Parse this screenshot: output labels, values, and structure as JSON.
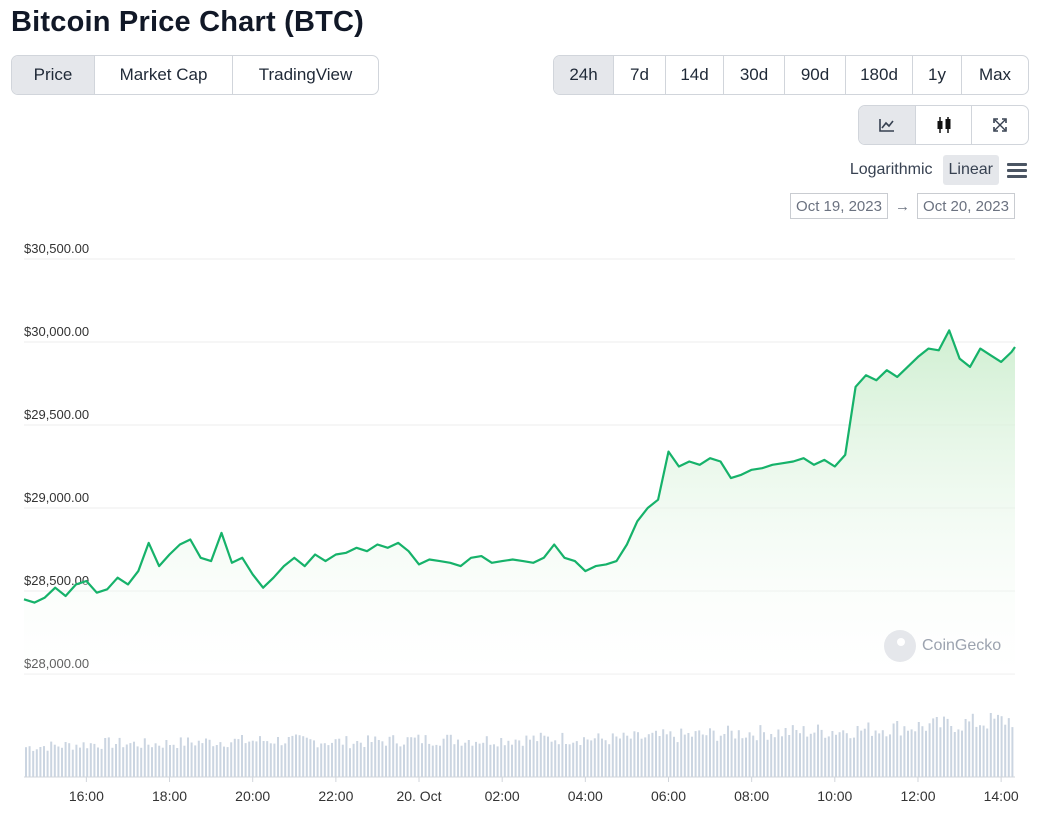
{
  "title": "Bitcoin Price Chart (BTC)",
  "view_tabs": [
    {
      "label": "Price",
      "active": true
    },
    {
      "label": "Market Cap",
      "active": false
    },
    {
      "label": "TradingView",
      "active": false
    }
  ],
  "range_tabs": [
    {
      "label": "24h",
      "active": true
    },
    {
      "label": "7d",
      "active": false
    },
    {
      "label": "14d",
      "active": false
    },
    {
      "label": "30d",
      "active": false
    },
    {
      "label": "90d",
      "active": false
    },
    {
      "label": "180d",
      "active": false
    },
    {
      "label": "1y",
      "active": false
    },
    {
      "label": "Max",
      "active": false
    }
  ],
  "tools": [
    {
      "icon": "line-chart-icon",
      "active": true
    },
    {
      "icon": "candlestick-icon",
      "active": false
    },
    {
      "icon": "fullscreen-icon",
      "active": false
    }
  ],
  "scale": {
    "log_label": "Logarithmic",
    "linear_label": "Linear",
    "selected": "Linear"
  },
  "date_range": {
    "from": "Oct 19, 2023",
    "arrow": "→",
    "to": "Oct 20, 2023"
  },
  "watermark": "CoinGecko",
  "colors": {
    "line": "#16b26a",
    "fill": "#d9f2dc",
    "volume": "#cbd5e1",
    "grid": "#ececec"
  },
  "chart_data": {
    "type": "area",
    "ylim": [
      28000,
      30500
    ],
    "yticks": [
      {
        "value": 30500,
        "label": "$30,500.00"
      },
      {
        "value": 30000,
        "label": "$30,000.00"
      },
      {
        "value": 29500,
        "label": "$29,500.00"
      },
      {
        "value": 29000,
        "label": "$29,000.00"
      },
      {
        "value": 28500,
        "label": "$28,500.00"
      },
      {
        "value": 28000,
        "label": "$28,000.00"
      }
    ],
    "xlim": [
      "14:30",
      "14:20"
    ],
    "xticks": [
      {
        "time": "16:00",
        "label": "16:00"
      },
      {
        "time": "18:00",
        "label": "18:00"
      },
      {
        "time": "20:00",
        "label": "20:00"
      },
      {
        "time": "22:00",
        "label": "22:00"
      },
      {
        "time": "00:00",
        "label": "20. Oct"
      },
      {
        "time": "02:00",
        "label": "02:00"
      },
      {
        "time": "04:00",
        "label": "04:00"
      },
      {
        "time": "06:00",
        "label": "06:00"
      },
      {
        "time": "08:00",
        "label": "08:00"
      },
      {
        "time": "10:00",
        "label": "10:00"
      },
      {
        "time": "12:00",
        "label": "12:00"
      },
      {
        "time": "14:00",
        "label": "14:00"
      }
    ],
    "series": [
      {
        "x": [
          "14:30",
          "14:45",
          "15:00",
          "15:15",
          "15:30",
          "15:45",
          "16:00",
          "16:15",
          "16:30",
          "16:45",
          "17:00",
          "17:15",
          "17:30",
          "17:45",
          "18:00",
          "18:15",
          "18:30",
          "18:45",
          "19:00",
          "19:15",
          "19:30",
          "19:45",
          "20:00",
          "20:15",
          "20:30",
          "20:45",
          "21:00",
          "21:15",
          "21:30",
          "21:45",
          "22:00",
          "22:15",
          "22:30",
          "22:45",
          "23:00",
          "23:15",
          "23:30",
          "23:45",
          "00:00",
          "00:15",
          "00:30",
          "00:45",
          "01:00",
          "01:15",
          "01:30",
          "01:45",
          "02:00",
          "02:15",
          "02:30",
          "02:45",
          "03:00",
          "03:15",
          "03:30",
          "03:45",
          "04:00",
          "04:15",
          "04:30",
          "04:45",
          "05:00",
          "05:15",
          "05:30",
          "05:45",
          "06:00",
          "06:15",
          "06:30",
          "06:45",
          "07:00",
          "07:15",
          "07:30",
          "07:45",
          "08:00",
          "08:15",
          "08:30",
          "08:45",
          "09:00",
          "09:15",
          "09:30",
          "09:45",
          "10:00",
          "10:15",
          "10:30",
          "10:45",
          "11:00",
          "11:15",
          "11:30",
          "11:45",
          "12:00",
          "12:15",
          "12:30",
          "12:45",
          "13:00",
          "13:15",
          "13:30",
          "13:45",
          "14:00",
          "14:15",
          "14:20"
        ],
        "values": [
          28450,
          28430,
          28460,
          28520,
          28470,
          28540,
          28560,
          28490,
          28510,
          28580,
          28540,
          28620,
          28790,
          28650,
          28720,
          28780,
          28810,
          28700,
          28680,
          28850,
          28670,
          28700,
          28600,
          28520,
          28580,
          28650,
          28700,
          28650,
          28720,
          28680,
          28720,
          28730,
          28760,
          28740,
          28780,
          28760,
          28790,
          28740,
          28660,
          28690,
          28680,
          28670,
          28650,
          28700,
          28710,
          28670,
          28680,
          28690,
          28680,
          28670,
          28700,
          28780,
          28700,
          28680,
          28620,
          28650,
          28660,
          28680,
          28780,
          28920,
          29000,
          29050,
          29340,
          29250,
          29280,
          29260,
          29300,
          29280,
          29180,
          29200,
          29230,
          29240,
          29260,
          29270,
          29280,
          29300,
          29260,
          29290,
          29250,
          29320,
          29730,
          29800,
          29770,
          29830,
          29790,
          29850,
          29910,
          29960,
          29950,
          30070,
          29900,
          29850,
          29960,
          29920,
          29880,
          29940,
          29970
        ]
      }
    ],
    "volume": {
      "x": [
        "14:30",
        "15:30",
        "16:30",
        "17:30",
        "18:30",
        "19:30",
        "20:30",
        "21:30",
        "22:30",
        "23:30",
        "00:30",
        "01:30",
        "02:30",
        "03:30",
        "04:30",
        "05:30",
        "06:30",
        "07:30",
        "08:30",
        "09:30",
        "10:30",
        "11:30",
        "12:30",
        "13:30",
        "14:20"
      ],
      "values": [
        30,
        32,
        34,
        33,
        35,
        36,
        37,
        36,
        35,
        37,
        38,
        37,
        38,
        39,
        38,
        40,
        42,
        44,
        45,
        46,
        47,
        50,
        52,
        55,
        58
      ]
    }
  }
}
